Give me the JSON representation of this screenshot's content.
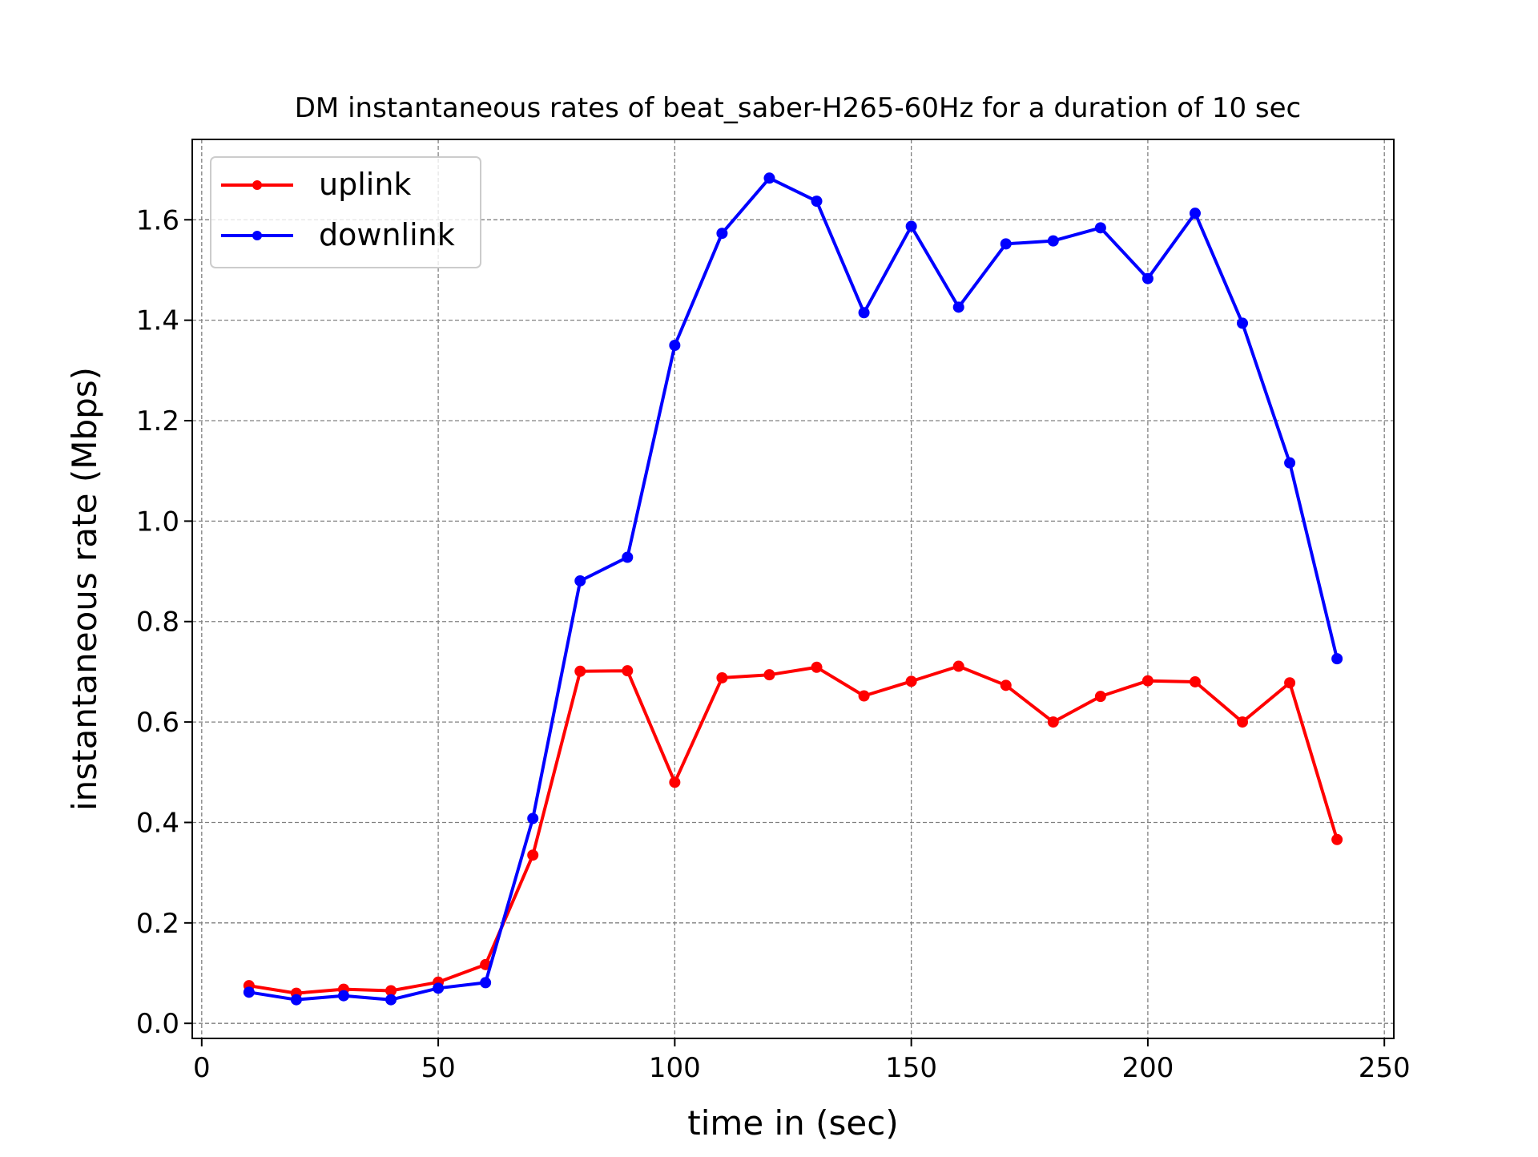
{
  "chart_data": {
    "type": "line",
    "title": "DM instantaneous rates of beat_saber-H265-60Hz for a duration of 10 sec",
    "xlabel": "time in (sec)",
    "ylabel": "instantaneous rate (Mbps)",
    "xlim": [
      -2,
      252
    ],
    "ylim": [
      -0.03,
      1.76
    ],
    "xticks": [
      0,
      50,
      100,
      150,
      200,
      250
    ],
    "xtick_labels": [
      "0",
      "50",
      "100",
      "150",
      "200",
      "250"
    ],
    "yticks": [
      0.0,
      0.2,
      0.4,
      0.6,
      0.8,
      1.0,
      1.2,
      1.4,
      1.6
    ],
    "ytick_labels": [
      "0.0",
      "0.2",
      "0.4",
      "0.6",
      "0.8",
      "1.0",
      "1.2",
      "1.4",
      "1.6"
    ],
    "grid": true,
    "legend_position": "upper-left",
    "x": [
      10,
      20,
      30,
      40,
      50,
      60,
      70,
      80,
      90,
      100,
      110,
      120,
      130,
      140,
      150,
      160,
      170,
      180,
      190,
      200,
      210,
      220,
      230,
      240
    ],
    "series": [
      {
        "name": "uplink",
        "color": "#ff0000",
        "values": [
          0.075,
          0.06,
          0.068,
          0.065,
          0.082,
          0.117,
          0.335,
          0.701,
          0.702,
          0.48,
          0.688,
          0.694,
          0.709,
          0.652,
          0.681,
          0.711,
          0.673,
          0.6,
          0.651,
          0.682,
          0.68,
          0.6,
          0.678,
          0.366
        ]
      },
      {
        "name": "downlink",
        "color": "#0000ff",
        "values": [
          0.062,
          0.047,
          0.055,
          0.047,
          0.07,
          0.081,
          0.408,
          0.881,
          0.928,
          1.35,
          1.573,
          1.683,
          1.637,
          1.415,
          1.587,
          1.426,
          1.552,
          1.558,
          1.584,
          1.483,
          1.613,
          1.394,
          1.116,
          0.726
        ]
      }
    ]
  }
}
